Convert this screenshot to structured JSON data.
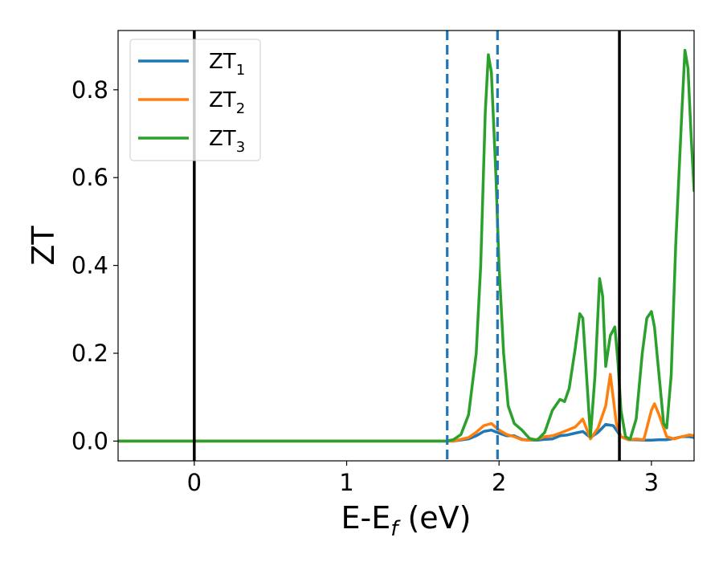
{
  "chart_data": {
    "type": "line",
    "xlabel": "E-E",
    "xlabel_sub": "f",
    "xlabel_unit": "(eV)",
    "ylabel": "ZT",
    "xlim": [
      -0.5,
      3.28
    ],
    "ylim": [
      -0.045,
      0.935
    ],
    "x_ticks": [
      0,
      1,
      2,
      3
    ],
    "x_tick_labels": [
      "0",
      "1",
      "2",
      "3"
    ],
    "y_ticks": [
      0.0,
      0.2,
      0.4,
      0.6,
      0.8
    ],
    "y_tick_labels": [
      "0.0",
      "0.2",
      "0.4",
      "0.6",
      "0.8"
    ],
    "grid": false,
    "legend_position": "top-left",
    "vertical_lines": [
      {
        "x": 0.0,
        "style": "solid",
        "color": "#000000"
      },
      {
        "x": 2.79,
        "style": "solid",
        "color": "#000000"
      },
      {
        "x": 1.66,
        "style": "dashed",
        "color": "#1f77b4"
      },
      {
        "x": 1.99,
        "style": "dashed",
        "color": "#1f77b4"
      }
    ],
    "series": [
      {
        "name": "ZT",
        "name_sub": "1",
        "color": "#1f77b4",
        "x": [
          -0.5,
          1.6,
          1.7,
          1.8,
          1.85,
          1.9,
          1.95,
          2.0,
          2.05,
          2.1,
          2.15,
          2.2,
          2.25,
          2.3,
          2.35,
          2.4,
          2.45,
          2.5,
          2.55,
          2.6,
          2.65,
          2.7,
          2.75,
          2.8,
          2.85,
          2.9,
          2.95,
          3.0,
          3.05,
          3.1,
          3.15,
          3.2,
          3.25,
          3.28
        ],
        "y": [
          0.0,
          0.0,
          0.0,
          0.005,
          0.012,
          0.022,
          0.025,
          0.018,
          0.012,
          0.012,
          0.004,
          0.002,
          0.002,
          0.004,
          0.005,
          0.012,
          0.014,
          0.018,
          0.022,
          0.008,
          0.02,
          0.038,
          0.035,
          0.01,
          0.003,
          0.003,
          0.002,
          0.002,
          0.003,
          0.003,
          0.006,
          0.01,
          0.01,
          0.008
        ]
      },
      {
        "name": "ZT",
        "name_sub": "2",
        "color": "#ff7f0e",
        "x": [
          -0.5,
          1.6,
          1.7,
          1.8,
          1.85,
          1.9,
          1.95,
          2.0,
          2.05,
          2.1,
          2.15,
          2.2,
          2.25,
          2.3,
          2.35,
          2.4,
          2.45,
          2.5,
          2.55,
          2.6,
          2.65,
          2.7,
          2.73,
          2.77,
          2.8,
          2.85,
          2.9,
          2.95,
          3.0,
          3.02,
          3.05,
          3.1,
          3.15,
          3.2,
          3.25,
          3.28
        ],
        "y": [
          0.0,
          0.0,
          0.0,
          0.008,
          0.02,
          0.035,
          0.04,
          0.025,
          0.015,
          0.01,
          0.003,
          0.002,
          0.004,
          0.01,
          0.012,
          0.018,
          0.025,
          0.032,
          0.05,
          0.005,
          0.03,
          0.08,
          0.152,
          0.04,
          0.01,
          0.003,
          0.005,
          0.003,
          0.07,
          0.085,
          0.06,
          0.01,
          0.005,
          0.01,
          0.014,
          0.012
        ]
      },
      {
        "name": "ZT",
        "name_sub": "3",
        "color": "#2ca02c",
        "x": [
          -0.5,
          1.6,
          1.65,
          1.7,
          1.75,
          1.8,
          1.85,
          1.88,
          1.91,
          1.93,
          1.95,
          1.98,
          2.0,
          2.03,
          2.06,
          2.1,
          2.15,
          2.2,
          2.25,
          2.3,
          2.35,
          2.4,
          2.43,
          2.46,
          2.5,
          2.53,
          2.55,
          2.58,
          2.6,
          2.63,
          2.66,
          2.68,
          2.7,
          2.73,
          2.76,
          2.78,
          2.8,
          2.83,
          2.86,
          2.9,
          2.94,
          2.97,
          3.0,
          3.02,
          3.05,
          3.08,
          3.1,
          3.13,
          3.16,
          3.2,
          3.22,
          3.24,
          3.26,
          3.28
        ],
        "y": [
          0.0,
          0.0,
          0.0,
          0.003,
          0.015,
          0.06,
          0.2,
          0.4,
          0.75,
          0.88,
          0.84,
          0.6,
          0.4,
          0.2,
          0.08,
          0.04,
          0.025,
          0.006,
          0.002,
          0.02,
          0.07,
          0.095,
          0.09,
          0.12,
          0.21,
          0.29,
          0.28,
          0.12,
          0.01,
          0.15,
          0.37,
          0.33,
          0.17,
          0.24,
          0.26,
          0.18,
          0.07,
          0.01,
          0.004,
          0.05,
          0.2,
          0.28,
          0.295,
          0.26,
          0.15,
          0.04,
          0.03,
          0.15,
          0.45,
          0.75,
          0.89,
          0.85,
          0.7,
          0.57
        ]
      }
    ]
  }
}
